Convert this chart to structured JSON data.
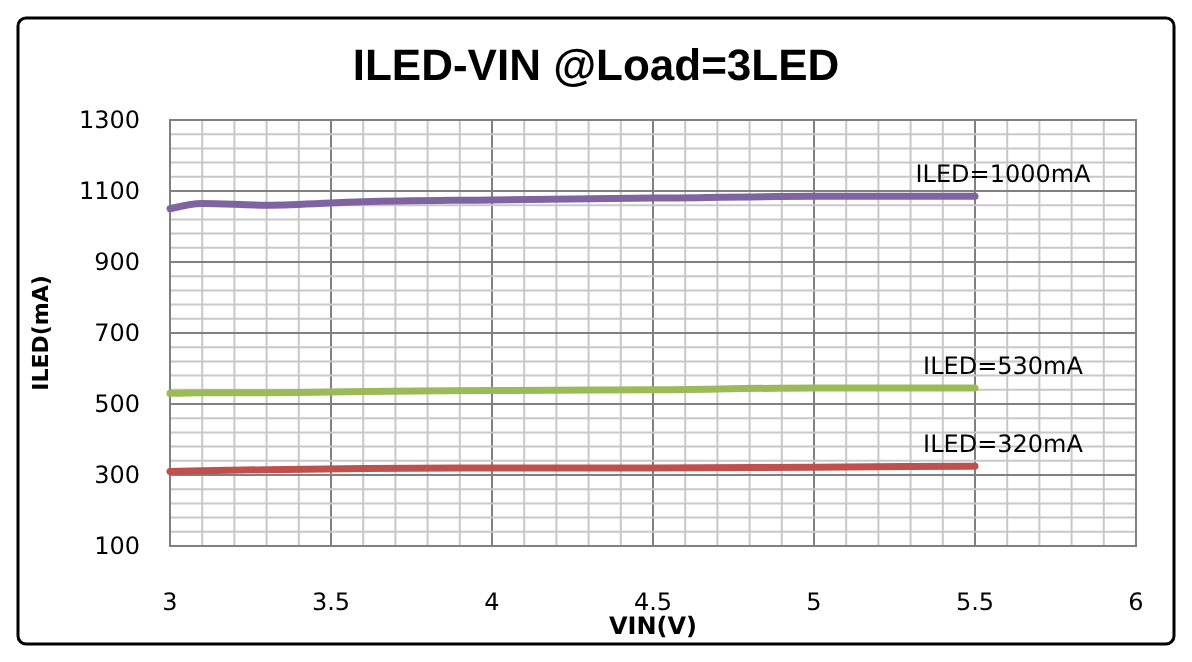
{
  "chart_data": {
    "type": "line",
    "title": "ILED-VIN @Load=3LED",
    "xlabel": "VIN(V)",
    "ylabel": "ILED(mA)",
    "xlim": [
      3,
      6
    ],
    "ylim": [
      100,
      1300
    ],
    "xticks": [
      3,
      {
        "value": 3.1,
        "label": null
      },
      {
        "value": 3.2,
        "label": null
      },
      {
        "value": 3.3,
        "label": null
      },
      {
        "value": 3.4,
        "label": null
      },
      3.5,
      {
        "value": 3.6,
        "label": null
      },
      {
        "value": 3.7,
        "label": null
      },
      {
        "value": 3.8,
        "label": null
      },
      {
        "value": 3.9,
        "label": null
      },
      4,
      {
        "value": 4.1,
        "label": null
      },
      {
        "value": 4.2,
        "label": null
      },
      {
        "value": 4.3,
        "label": null
      },
      {
        "value": 4.4,
        "label": null
      },
      4.5,
      {
        "value": 4.6,
        "label": null
      },
      {
        "value": 4.7,
        "label": null
      },
      {
        "value": 4.8,
        "label": null
      },
      {
        "value": 4.9,
        "label": null
      },
      5,
      {
        "value": 5.1,
        "label": null
      },
      {
        "value": 5.2,
        "label": null
      },
      {
        "value": 5.3,
        "label": null
      },
      {
        "value": 5.4,
        "label": null
      },
      5.5,
      {
        "value": 5.6,
        "label": null
      },
      {
        "value": 5.7,
        "label": null
      },
      {
        "value": 5.8,
        "label": null
      },
      {
        "value": 5.9,
        "label": null
      },
      6
    ],
    "yticks": [
      100,
      {
        "value": 140,
        "label": null
      },
      {
        "value": 180,
        "label": null
      },
      {
        "value": 220,
        "label": null
      },
      {
        "value": 260,
        "label": null
      },
      300,
      {
        "value": 340,
        "label": null
      },
      {
        "value": 380,
        "label": null
      },
      {
        "value": 420,
        "label": null
      },
      {
        "value": 460,
        "label": null
      },
      500,
      {
        "value": 540,
        "label": null
      },
      {
        "value": 580,
        "label": null
      },
      {
        "value": 620,
        "label": null
      },
      {
        "value": 660,
        "label": null
      },
      700,
      {
        "value": 740,
        "label": null
      },
      {
        "value": 780,
        "label": null
      },
      {
        "value": 820,
        "label": null
      },
      {
        "value": 860,
        "label": null
      },
      900,
      {
        "value": 940,
        "label": null
      },
      {
        "value": 980,
        "label": null
      },
      {
        "value": 1020,
        "label": null
      },
      {
        "value": 1060,
        "label": null
      },
      1100,
      {
        "value": 1140,
        "label": null
      },
      {
        "value": 1180,
        "label": null
      },
      {
        "value": 1220,
        "label": null
      },
      {
        "value": 1260,
        "label": null
      },
      1300
    ],
    "grid": true,
    "marker": "none",
    "line_style": "solid",
    "x": [
      3,
      3.1,
      3.3,
      3.6,
      4,
      4.5,
      5,
      5.5
    ],
    "series": [
      {
        "name": "ILED=1000mA",
        "color": "#8064a2",
        "values": [
          1050,
          1065,
          1060,
          1070,
          1075,
          1080,
          1085,
          1085
        ]
      },
      {
        "name": "ILED=530mA",
        "color": "#9bbb59",
        "values": [
          530,
          532,
          532,
          535,
          538,
          540,
          545,
          545
        ]
      },
      {
        "name": "ILED=320mA",
        "color": "#c0504d",
        "values": [
          310,
          312,
          315,
          318,
          320,
          320,
          322,
          325
        ]
      }
    ]
  }
}
